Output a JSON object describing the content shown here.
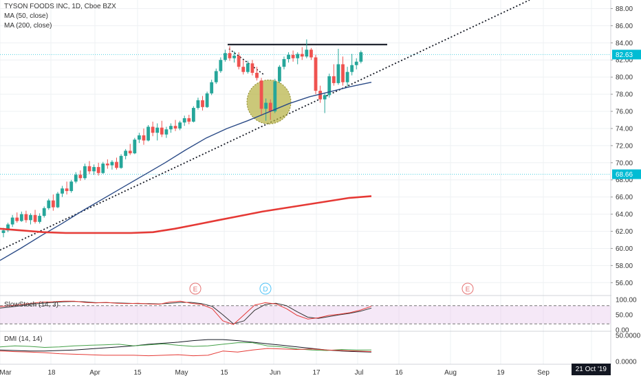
{
  "legend": {
    "title": "TYSON FOODS INC, 1D, Cboe BZX",
    "ma1": "MA (50, close)",
    "ma2": "MA (200, close)"
  },
  "colors": {
    "up": "#26a69a",
    "down": "#ef5350",
    "ma50": "#2a4a86",
    "ma200": "#e53935",
    "trendline": "#131722",
    "hline": "#4dd0e1",
    "price_tag": "#00bcd4",
    "ellipse_fill": "#b5b040",
    "slow_k": "#e53935",
    "slow_d": "#333333",
    "dmi_adx": "#131722",
    "dmi_plus": "#43a047",
    "dmi_minus": "#e53935"
  },
  "price_axis": {
    "ticks": [
      "88.00",
      "86.00",
      "84.00",
      "82.00",
      "80.00",
      "78.00",
      "76.00",
      "74.00",
      "72.00",
      "70.00",
      "68.00",
      "66.00",
      "64.00",
      "62.00",
      "60.00",
      "58.00",
      "56.00"
    ],
    "current_price": "82.63",
    "level_price": "68.66"
  },
  "time_axis": {
    "labels": [
      "Mar",
      "18",
      "Apr",
      "15",
      "May",
      "15",
      "Jun",
      "17",
      "Jul",
      "16",
      "Aug",
      "19",
      "Sep"
    ],
    "cursor_date": "21 Oct '19"
  },
  "events": [
    {
      "label": "E",
      "kind": "earnings"
    },
    {
      "label": "D",
      "kind": "dividend"
    },
    {
      "label": "E",
      "kind": "earnings"
    }
  ],
  "panels": {
    "stoch": {
      "title": "SlowStoch (14, 3)",
      "ticks": [
        "100.00",
        "50.00",
        "0.00"
      ]
    },
    "dmi": {
      "title": "DMI (14, 14)",
      "ticks": [
        "50.0000",
        "0.0000"
      ]
    }
  },
  "chart_data": {
    "type": "candlestick",
    "title": "TYSON FOODS INC, 1D, Cboe BZX",
    "ylim": [
      54.5,
      89
    ],
    "candles": [
      {
        "o": 61.8,
        "h": 62.4,
        "l": 61.3,
        "c": 62.1
      },
      {
        "o": 62.1,
        "h": 63.0,
        "l": 61.9,
        "c": 62.8
      },
      {
        "o": 62.8,
        "h": 63.9,
        "l": 62.5,
        "c": 63.6
      },
      {
        "o": 63.6,
        "h": 64.2,
        "l": 63.0,
        "c": 63.2
      },
      {
        "o": 63.2,
        "h": 64.3,
        "l": 63.1,
        "c": 64.0
      },
      {
        "o": 64.0,
        "h": 64.4,
        "l": 63.0,
        "c": 63.3
      },
      {
        "o": 63.3,
        "h": 64.1,
        "l": 62.8,
        "c": 63.9
      },
      {
        "o": 63.9,
        "h": 64.5,
        "l": 62.9,
        "c": 63.1
      },
      {
        "o": 63.1,
        "h": 64.1,
        "l": 62.9,
        "c": 63.8
      },
      {
        "o": 63.8,
        "h": 64.9,
        "l": 63.6,
        "c": 64.7
      },
      {
        "o": 64.7,
        "h": 65.8,
        "l": 64.5,
        "c": 65.6
      },
      {
        "o": 65.6,
        "h": 66.3,
        "l": 64.4,
        "c": 64.8
      },
      {
        "o": 64.8,
        "h": 66.6,
        "l": 64.7,
        "c": 66.4
      },
      {
        "o": 66.4,
        "h": 67.3,
        "l": 66.0,
        "c": 67.0
      },
      {
        "o": 67.0,
        "h": 67.8,
        "l": 66.3,
        "c": 66.7
      },
      {
        "o": 66.7,
        "h": 68.0,
        "l": 66.5,
        "c": 67.8
      },
      {
        "o": 67.8,
        "h": 68.9,
        "l": 67.6,
        "c": 68.6
      },
      {
        "o": 68.6,
        "h": 69.1,
        "l": 67.9,
        "c": 68.2
      },
      {
        "o": 68.2,
        "h": 69.9,
        "l": 68.0,
        "c": 69.6
      },
      {
        "o": 69.6,
        "h": 70.2,
        "l": 68.7,
        "c": 69.0
      },
      {
        "o": 69.0,
        "h": 69.8,
        "l": 68.6,
        "c": 69.5
      },
      {
        "o": 69.5,
        "h": 70.0,
        "l": 68.5,
        "c": 68.8
      },
      {
        "o": 68.8,
        "h": 70.1,
        "l": 68.7,
        "c": 69.9
      },
      {
        "o": 69.9,
        "h": 70.4,
        "l": 69.3,
        "c": 69.7
      },
      {
        "o": 69.7,
        "h": 70.3,
        "l": 69.2,
        "c": 70.1
      },
      {
        "o": 70.1,
        "h": 70.6,
        "l": 69.2,
        "c": 69.4
      },
      {
        "o": 69.4,
        "h": 71.0,
        "l": 69.3,
        "c": 70.8
      },
      {
        "o": 70.8,
        "h": 71.6,
        "l": 70.4,
        "c": 71.4
      },
      {
        "o": 71.4,
        "h": 72.2,
        "l": 70.9,
        "c": 71.1
      },
      {
        "o": 71.1,
        "h": 72.9,
        "l": 71.0,
        "c": 72.7
      },
      {
        "o": 72.7,
        "h": 73.5,
        "l": 72.3,
        "c": 73.2
      },
      {
        "o": 73.2,
        "h": 74.0,
        "l": 72.1,
        "c": 72.6
      },
      {
        "o": 72.6,
        "h": 74.4,
        "l": 72.5,
        "c": 74.2
      },
      {
        "o": 74.2,
        "h": 74.8,
        "l": 73.1,
        "c": 73.5
      },
      {
        "o": 73.5,
        "h": 74.6,
        "l": 72.6,
        "c": 74.1
      },
      {
        "o": 74.1,
        "h": 74.9,
        "l": 73.0,
        "c": 73.3
      },
      {
        "o": 73.3,
        "h": 74.2,
        "l": 72.9,
        "c": 73.9
      },
      {
        "o": 73.9,
        "h": 74.6,
        "l": 73.5,
        "c": 74.3
      },
      {
        "o": 74.3,
        "h": 75.0,
        "l": 73.7,
        "c": 74.0
      },
      {
        "o": 74.0,
        "h": 74.9,
        "l": 73.8,
        "c": 74.7
      },
      {
        "o": 74.7,
        "h": 75.5,
        "l": 74.3,
        "c": 75.2
      },
      {
        "o": 75.2,
        "h": 75.6,
        "l": 74.5,
        "c": 74.8
      },
      {
        "o": 74.8,
        "h": 76.6,
        "l": 74.7,
        "c": 76.4
      },
      {
        "o": 76.4,
        "h": 77.6,
        "l": 76.2,
        "c": 77.3
      },
      {
        "o": 77.3,
        "h": 77.8,
        "l": 76.1,
        "c": 76.5
      },
      {
        "o": 76.5,
        "h": 78.3,
        "l": 76.4,
        "c": 78.1
      },
      {
        "o": 78.1,
        "h": 79.7,
        "l": 77.9,
        "c": 79.4
      },
      {
        "o": 79.4,
        "h": 81.0,
        "l": 79.2,
        "c": 80.7
      },
      {
        "o": 80.7,
        "h": 82.3,
        "l": 80.5,
        "c": 82.0
      },
      {
        "o": 82.0,
        "h": 83.2,
        "l": 81.8,
        "c": 82.8
      },
      {
        "o": 82.8,
        "h": 83.6,
        "l": 81.9,
        "c": 82.2
      },
      {
        "o": 82.2,
        "h": 83.0,
        "l": 81.7,
        "c": 82.5
      },
      {
        "o": 82.5,
        "h": 82.9,
        "l": 80.9,
        "c": 81.2
      },
      {
        "o": 81.2,
        "h": 82.0,
        "l": 80.3,
        "c": 80.6
      },
      {
        "o": 80.6,
        "h": 81.9,
        "l": 80.4,
        "c": 81.6
      },
      {
        "o": 81.6,
        "h": 82.0,
        "l": 80.2,
        "c": 80.5
      },
      {
        "o": 80.5,
        "h": 81.2,
        "l": 79.6,
        "c": 79.9
      },
      {
        "o": 79.6,
        "h": 79.9,
        "l": 75.5,
        "c": 76.3
      },
      {
        "o": 76.3,
        "h": 77.5,
        "l": 74.9,
        "c": 77.0
      },
      {
        "o": 77.0,
        "h": 77.4,
        "l": 75.0,
        "c": 76.0
      },
      {
        "o": 76.0,
        "h": 79.8,
        "l": 75.8,
        "c": 79.5
      },
      {
        "o": 79.5,
        "h": 81.4,
        "l": 79.3,
        "c": 81.2
      },
      {
        "o": 81.2,
        "h": 82.4,
        "l": 80.9,
        "c": 82.1
      },
      {
        "o": 82.1,
        "h": 82.9,
        "l": 81.7,
        "c": 82.6
      },
      {
        "o": 82.6,
        "h": 83.1,
        "l": 81.8,
        "c": 82.2
      },
      {
        "o": 82.2,
        "h": 82.9,
        "l": 81.5,
        "c": 82.7
      },
      {
        "o": 82.7,
        "h": 83.5,
        "l": 82.0,
        "c": 82.4
      },
      {
        "o": 82.4,
        "h": 84.4,
        "l": 82.2,
        "c": 83.2
      },
      {
        "o": 83.2,
        "h": 83.4,
        "l": 82.0,
        "c": 82.3
      },
      {
        "o": 82.3,
        "h": 82.6,
        "l": 78.0,
        "c": 78.4
      },
      {
        "o": 78.4,
        "h": 79.0,
        "l": 77.0,
        "c": 77.4
      },
      {
        "o": 77.4,
        "h": 78.1,
        "l": 75.8,
        "c": 77.9
      },
      {
        "o": 77.9,
        "h": 80.4,
        "l": 77.6,
        "c": 80.1
      },
      {
        "o": 80.1,
        "h": 81.5,
        "l": 79.0,
        "c": 79.3
      },
      {
        "o": 79.3,
        "h": 83.3,
        "l": 79.1,
        "c": 81.5
      },
      {
        "o": 81.5,
        "h": 82.4,
        "l": 79.0,
        "c": 79.4
      },
      {
        "o": 79.4,
        "h": 81.2,
        "l": 78.9,
        "c": 80.6
      },
      {
        "o": 80.6,
        "h": 82.7,
        "l": 80.2,
        "c": 81.4
      },
      {
        "o": 81.4,
        "h": 82.2,
        "l": 80.9,
        "c": 81.8
      },
      {
        "o": 81.8,
        "h": 83.1,
        "l": 81.6,
        "c": 82.9
      }
    ],
    "ma50": [
      58.6,
      60.0,
      61.5,
      62.9,
      64.4,
      65.8,
      67.2,
      68.6,
      70.0,
      71.5,
      72.9,
      74.0,
      74.9,
      75.9,
      76.9,
      77.7,
      78.3,
      78.9,
      79.4
    ],
    "ma200": [
      62.3,
      62.1,
      61.9,
      61.8,
      61.8,
      61.8,
      61.8,
      61.9,
      62.3,
      62.8,
      63.3,
      63.8,
      64.3,
      64.7,
      65.1,
      65.5,
      65.9,
      66.1
    ],
    "horizontal_levels": [
      82.63,
      68.66
    ],
    "resistance_line": 83.8,
    "stoch_k": [
      77,
      80,
      84,
      88,
      92,
      93,
      95,
      95,
      91,
      89,
      91,
      88,
      87,
      88,
      86,
      85,
      92,
      95,
      88,
      84,
      70,
      30,
      18,
      50,
      82,
      90,
      86,
      70,
      48,
      36,
      40,
      48,
      52,
      57,
      66,
      78
    ],
    "stoch_d": [
      72,
      76,
      80,
      85,
      88,
      91,
      93,
      94,
      93,
      90,
      90,
      89,
      88,
      87,
      87,
      86,
      88,
      91,
      91,
      87,
      78,
      50,
      20,
      30,
      65,
      84,
      88,
      80,
      60,
      42,
      38,
      44,
      50,
      55,
      62,
      72
    ],
    "dmi_adx": [
      22,
      21,
      20,
      20,
      21,
      22,
      24,
      26,
      28,
      30,
      33,
      35,
      37,
      40,
      42,
      42,
      40,
      37,
      34,
      31,
      28,
      25,
      22,
      20,
      19,
      18
    ],
    "dmi_plus": [
      28,
      30,
      29,
      27,
      28,
      30,
      31,
      32,
      33,
      30,
      32,
      34,
      31,
      29,
      30,
      33,
      36,
      36,
      30,
      28,
      24,
      22,
      21,
      23,
      22,
      22
    ],
    "dmi_minus": [
      20,
      19,
      18,
      17,
      15,
      14,
      13,
      12,
      12,
      12,
      11,
      12,
      13,
      11,
      12,
      20,
      18,
      22,
      25,
      24,
      23,
      24,
      22,
      21,
      20,
      19
    ]
  }
}
